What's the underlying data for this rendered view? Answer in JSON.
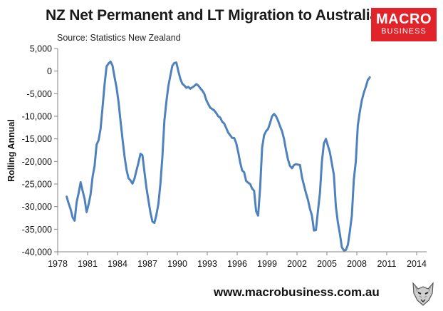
{
  "header": {
    "title": "NZ Net Permanent and LT Migration to Australia",
    "source": "Source: Statistics New Zealand"
  },
  "logo": {
    "line1": "MACRO",
    "line2": "BUSINESS"
  },
  "footer": {
    "url": "www.macrobusiness.com.au"
  },
  "colors": {
    "line": "#4f81bd",
    "logo": "#e3232a",
    "axis": "#868686"
  },
  "icons": {
    "wolf": "wolf-logo-icon"
  },
  "chart_data": {
    "type": "line",
    "title": "NZ Net Permanent and LT Migration to Australia",
    "ylabel": "Rolling Annual",
    "xlim": [
      1978,
      2015
    ],
    "ylim": [
      -40000,
      5000
    ],
    "x_ticks": [
      1978,
      1981,
      1984,
      1987,
      1990,
      1993,
      1996,
      1999,
      2002,
      2005,
      2008,
      2011,
      2014
    ],
    "x_tick_labels": [
      "1978",
      "1981",
      "1984",
      "1987",
      "1990",
      "1993",
      "1996",
      "1999",
      "2002",
      "2005",
      "2008",
      "2011",
      "2014"
    ],
    "y_ticks": [
      5000,
      0,
      -5000,
      -10000,
      -15000,
      -20000,
      -25000,
      -30000,
      -35000,
      -40000
    ],
    "y_tick_labels": [
      "5,000",
      "0",
      "-5,000",
      "-10,000",
      "-15,000",
      "-20,000",
      "-25,000",
      "-30,000",
      "-35,000",
      "-40,000"
    ],
    "grid": false,
    "legend": "none",
    "series": [
      {
        "values": [
          [
            1978.9,
            -27800
          ],
          [
            1979.1,
            -29300
          ],
          [
            1979.3,
            -30600
          ],
          [
            1979.5,
            -32400
          ],
          [
            1979.7,
            -33100
          ],
          [
            1979.9,
            -29000
          ],
          [
            1980.1,
            -27000
          ],
          [
            1980.3,
            -24600
          ],
          [
            1980.5,
            -26500
          ],
          [
            1980.7,
            -28300
          ],
          [
            1980.9,
            -31200
          ],
          [
            1981.1,
            -29500
          ],
          [
            1981.3,
            -27300
          ],
          [
            1981.5,
            -23400
          ],
          [
            1981.7,
            -21000
          ],
          [
            1981.9,
            -16300
          ],
          [
            1982.1,
            -15300
          ],
          [
            1982.3,
            -12800
          ],
          [
            1982.5,
            -8000
          ],
          [
            1982.7,
            -3000
          ],
          [
            1982.9,
            1000
          ],
          [
            1983.1,
            1700
          ],
          [
            1983.3,
            2100
          ],
          [
            1983.5,
            1200
          ],
          [
            1983.7,
            -1300
          ],
          [
            1983.9,
            -3600
          ],
          [
            1984.1,
            -6800
          ],
          [
            1984.3,
            -11000
          ],
          [
            1984.5,
            -15000
          ],
          [
            1984.7,
            -18800
          ],
          [
            1984.9,
            -21800
          ],
          [
            1985.1,
            -23700
          ],
          [
            1985.3,
            -24200
          ],
          [
            1985.5,
            -24900
          ],
          [
            1985.7,
            -23800
          ],
          [
            1985.9,
            -22000
          ],
          [
            1986.1,
            -20300
          ],
          [
            1986.3,
            -18300
          ],
          [
            1986.5,
            -18600
          ],
          [
            1986.7,
            -22300
          ],
          [
            1986.9,
            -25800
          ],
          [
            1987.1,
            -28600
          ],
          [
            1987.3,
            -31300
          ],
          [
            1987.5,
            -33300
          ],
          [
            1987.7,
            -33600
          ],
          [
            1987.9,
            -31800
          ],
          [
            1988.1,
            -29400
          ],
          [
            1988.3,
            -25000
          ],
          [
            1988.5,
            -19000
          ],
          [
            1988.7,
            -11000
          ],
          [
            1988.9,
            -6800
          ],
          [
            1989.1,
            -3300
          ],
          [
            1989.3,
            -1000
          ],
          [
            1989.5,
            1200
          ],
          [
            1989.7,
            1800
          ],
          [
            1989.9,
            1900
          ],
          [
            1990.1,
            0
          ],
          [
            1990.3,
            -1700
          ],
          [
            1990.5,
            -2800
          ],
          [
            1990.7,
            -3200
          ],
          [
            1990.9,
            -3700
          ],
          [
            1991.1,
            -3500
          ],
          [
            1991.3,
            -3900
          ],
          [
            1991.5,
            -3600
          ],
          [
            1991.7,
            -3300
          ],
          [
            1991.9,
            -2900
          ],
          [
            1992.1,
            -3200
          ],
          [
            1992.3,
            -3800
          ],
          [
            1992.5,
            -4300
          ],
          [
            1992.7,
            -5000
          ],
          [
            1992.9,
            -6400
          ],
          [
            1993.1,
            -7300
          ],
          [
            1993.3,
            -8100
          ],
          [
            1993.5,
            -8400
          ],
          [
            1993.7,
            -8700
          ],
          [
            1993.9,
            -9300
          ],
          [
            1994.1,
            -10000
          ],
          [
            1994.3,
            -10300
          ],
          [
            1994.5,
            -11200
          ],
          [
            1994.7,
            -11600
          ],
          [
            1994.9,
            -12600
          ],
          [
            1995.1,
            -13600
          ],
          [
            1995.3,
            -14200
          ],
          [
            1995.5,
            -14800
          ],
          [
            1995.7,
            -14800
          ],
          [
            1995.9,
            -15900
          ],
          [
            1996.1,
            -17900
          ],
          [
            1996.3,
            -20200
          ],
          [
            1996.5,
            -22000
          ],
          [
            1996.7,
            -22400
          ],
          [
            1996.9,
            -24300
          ],
          [
            1997.1,
            -24700
          ],
          [
            1997.3,
            -25000
          ],
          [
            1997.5,
            -26000
          ],
          [
            1997.7,
            -26500
          ],
          [
            1997.9,
            -31000
          ],
          [
            1998.1,
            -32000
          ],
          [
            1998.3,
            -26000
          ],
          [
            1998.5,
            -17000
          ],
          [
            1998.7,
            -14200
          ],
          [
            1998.9,
            -13300
          ],
          [
            1999.1,
            -12800
          ],
          [
            1999.3,
            -11500
          ],
          [
            1999.5,
            -10000
          ],
          [
            1999.7,
            -9500
          ],
          [
            1999.9,
            -10000
          ],
          [
            2000.1,
            -11000
          ],
          [
            2000.3,
            -12200
          ],
          [
            2000.5,
            -13300
          ],
          [
            2000.7,
            -15000
          ],
          [
            2000.9,
            -17500
          ],
          [
            2001.1,
            -19600
          ],
          [
            2001.3,
            -21000
          ],
          [
            2001.5,
            -21500
          ],
          [
            2001.7,
            -20800
          ],
          [
            2001.9,
            -20600
          ],
          [
            2002.1,
            -20700
          ],
          [
            2002.3,
            -20800
          ],
          [
            2002.5,
            -23500
          ],
          [
            2002.7,
            -25300
          ],
          [
            2002.9,
            -27000
          ],
          [
            2003.1,
            -28500
          ],
          [
            2003.3,
            -30500
          ],
          [
            2003.5,
            -32000
          ],
          [
            2003.7,
            -35300
          ],
          [
            2003.9,
            -35200
          ],
          [
            2004.1,
            -31000
          ],
          [
            2004.3,
            -27000
          ],
          [
            2004.5,
            -20000
          ],
          [
            2004.7,
            -16000
          ],
          [
            2004.9,
            -15000
          ],
          [
            2005.1,
            -16500
          ],
          [
            2005.3,
            -18000
          ],
          [
            2005.5,
            -20500
          ],
          [
            2005.7,
            -23000
          ],
          [
            2005.9,
            -30000
          ],
          [
            2006.1,
            -33500
          ],
          [
            2006.3,
            -36000
          ],
          [
            2006.5,
            -39000
          ],
          [
            2006.7,
            -39700
          ],
          [
            2006.9,
            -39600
          ],
          [
            2007.1,
            -38500
          ],
          [
            2007.3,
            -35500
          ],
          [
            2007.5,
            -32000
          ],
          [
            2007.7,
            -24000
          ],
          [
            2007.9,
            -20000
          ],
          [
            2008.1,
            -12000
          ],
          [
            2008.3,
            -9000
          ],
          [
            2008.5,
            -6500
          ],
          [
            2008.7,
            -4800
          ],
          [
            2008.9,
            -3500
          ],
          [
            2009.1,
            -2000
          ],
          [
            2009.3,
            -1400
          ]
        ]
      }
    ]
  }
}
